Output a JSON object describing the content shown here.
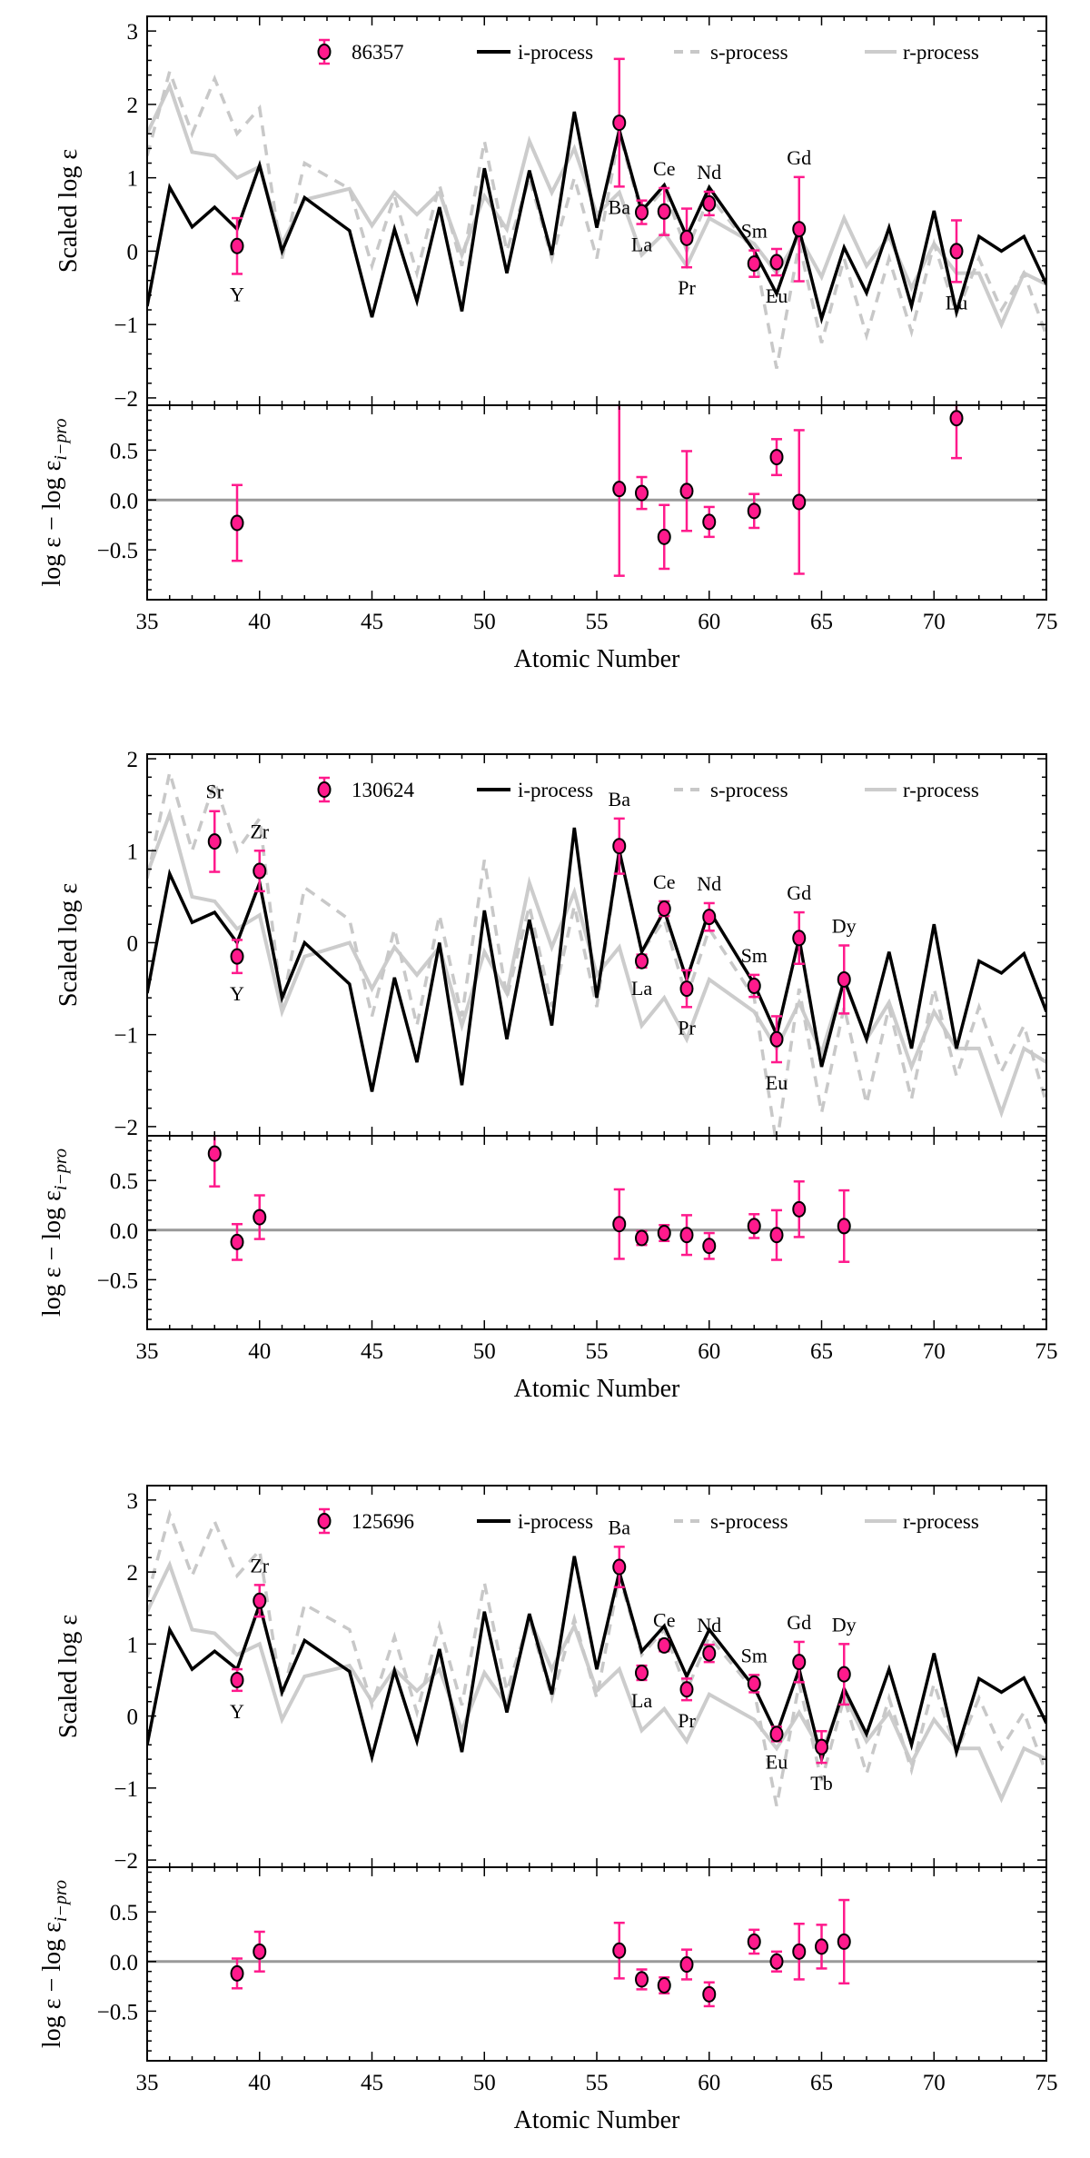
{
  "chart_data": [
    {
      "type": "line",
      "panel_star": "86357",
      "xlabel": "Atomic Number",
      "ylabel": "Scaled log ε",
      "residual_ylabel": "log ε − log ε",
      "residual_ylabel_sub": "i−pro",
      "xlim": [
        35,
        75
      ],
      "ylim": [
        -2.1,
        3.2
      ],
      "residual_ylim": [
        -1.0,
        0.95
      ],
      "x_ticks": [
        "35",
        "40",
        "45",
        "50",
        "55",
        "60",
        "65",
        "70",
        "75"
      ],
      "y_ticks": [
        "−2",
        "−1",
        "0",
        "1",
        "2",
        "3"
      ],
      "residual_y_ticks": [
        "−0.5",
        "0.0",
        "0.5"
      ],
      "legend": {
        "placement": "top",
        "entries": [
          "86357",
          "i-process",
          "s-process",
          "r-process"
        ]
      },
      "colors": {
        "observed": "#ff1a8c",
        "i_process": "#000000",
        "s_process": "#c8c8c8",
        "r_process": "#cccccc",
        "zero_line": "#999999"
      },
      "model_x": [
        35,
        36,
        37,
        38,
        39,
        40,
        41,
        42,
        44,
        45,
        46,
        47,
        48,
        49,
        50,
        51,
        52,
        53,
        54,
        55,
        56,
        57,
        58,
        59,
        60,
        62,
        63,
        64,
        65,
        66,
        67,
        68,
        69,
        70,
        71,
        72,
        73,
        74,
        75
      ],
      "series": [
        {
          "name": "i-process",
          "values": [
            -0.75,
            0.87,
            0.33,
            0.6,
            0.3,
            1.17,
            0.0,
            0.73,
            0.28,
            -0.9,
            0.3,
            -0.68,
            0.6,
            -0.82,
            1.13,
            -0.3,
            1.1,
            -0.05,
            1.9,
            0.32,
            1.65,
            0.55,
            0.9,
            0.2,
            0.87,
            0.0,
            -0.58,
            0.3,
            -0.92,
            0.05,
            -0.57,
            0.32,
            -0.75,
            0.55,
            -0.83,
            0.2,
            0.0,
            0.2,
            -0.45
          ]
        },
        {
          "name": "s-process",
          "values": [
            1.3,
            2.45,
            1.6,
            2.35,
            1.6,
            1.95,
            -0.1,
            1.2,
            0.85,
            -0.2,
            0.75,
            -0.3,
            0.9,
            -0.2,
            1.5,
            0.0,
            1.0,
            -0.1,
            1.0,
            -0.1,
            1.6,
            0.5,
            0.85,
            0.0,
            0.75,
            0.0,
            -1.6,
            0.1,
            -1.25,
            -0.1,
            -1.15,
            -0.1,
            -1.1,
            0.1,
            -0.85,
            -0.1,
            -0.8,
            -0.3,
            -1.15
          ]
        },
        {
          "name": "r-process",
          "values": [
            1.6,
            2.25,
            1.35,
            1.3,
            1.0,
            1.15,
            0.1,
            0.7,
            0.85,
            0.35,
            0.8,
            0.5,
            0.8,
            -0.05,
            0.75,
            0.3,
            1.5,
            0.8,
            1.4,
            0.5,
            0.8,
            -0.05,
            0.25,
            -0.2,
            0.45,
            0.1,
            -0.3,
            0.2,
            -0.35,
            0.45,
            -0.2,
            0.2,
            -0.5,
            0.1,
            -0.3,
            -0.3,
            -1.0,
            -0.3,
            -0.45
          ]
        }
      ],
      "observed": [
        {
          "label": "Y",
          "z": 39,
          "y": 0.07,
          "err": 0.38
        },
        {
          "label": "Ba",
          "z": 56,
          "y": 1.75,
          "err": 0.87
        },
        {
          "label": "La",
          "z": 57,
          "y": 0.53,
          "err": 0.16
        },
        {
          "label": "Ce",
          "z": 58,
          "y": 0.54,
          "err": 0.32
        },
        {
          "label": "Pr",
          "z": 59,
          "y": 0.18,
          "err": 0.4
        },
        {
          "label": "Nd",
          "z": 60,
          "y": 0.65,
          "err": 0.16
        },
        {
          "label": "Sm",
          "z": 62,
          "y": -0.17,
          "err": 0.18
        },
        {
          "label": "Eu",
          "z": 63,
          "y": -0.15,
          "err": 0.18
        },
        {
          "label": "Gd",
          "z": 64,
          "y": 0.3,
          "err": 0.71
        },
        {
          "label": "Lu",
          "z": 71,
          "y": 0.0,
          "err": 0.42
        }
      ],
      "residuals": [
        {
          "z": 39,
          "y": -0.23,
          "err": 0.38
        },
        {
          "z": 56,
          "y": 0.11,
          "err": 0.87
        },
        {
          "z": 57,
          "y": 0.07,
          "err": 0.16
        },
        {
          "z": 58,
          "y": -0.37,
          "err": 0.32
        },
        {
          "z": 59,
          "y": 0.09,
          "err": 0.4
        },
        {
          "z": 60,
          "y": -0.22,
          "err": 0.15
        },
        {
          "z": 62,
          "y": -0.11,
          "err": 0.17
        },
        {
          "z": 63,
          "y": 0.43,
          "err": 0.18
        },
        {
          "z": 64,
          "y": -0.02,
          "err": 0.72
        },
        {
          "z": 71,
          "y": 0.82,
          "err": 0.4
        }
      ]
    },
    {
      "type": "line",
      "panel_star": "130624",
      "xlabel": "Atomic Number",
      "ylabel": "Scaled log ε",
      "residual_ylabel": "log ε − log ε",
      "residual_ylabel_sub": "i−pro",
      "xlim": [
        35,
        75
      ],
      "ylim": [
        -2.1,
        2.05
      ],
      "residual_ylim": [
        -1.0,
        0.95
      ],
      "x_ticks": [
        "35",
        "40",
        "45",
        "50",
        "55",
        "60",
        "65",
        "70",
        "75"
      ],
      "y_ticks": [
        "−2",
        "−1",
        "0",
        "1",
        "2"
      ],
      "residual_y_ticks": [
        "−0.5",
        "0.0",
        "0.5"
      ],
      "legend": {
        "placement": "top",
        "entries": [
          "130624",
          "i-process",
          "s-process",
          "r-process"
        ]
      },
      "colors": {
        "observed": "#ff1a8c",
        "i_process": "#000000",
        "s_process": "#c8c8c8",
        "r_process": "#cccccc",
        "zero_line": "#999999"
      },
      "model_x": [
        35,
        36,
        37,
        38,
        39,
        40,
        41,
        42,
        44,
        45,
        46,
        47,
        48,
        49,
        50,
        51,
        52,
        53,
        54,
        55,
        56,
        57,
        58,
        59,
        60,
        62,
        63,
        64,
        65,
        66,
        67,
        68,
        69,
        70,
        71,
        72,
        73,
        74,
        75
      ],
      "series": [
        {
          "name": "i-process",
          "values": [
            -0.55,
            0.75,
            0.22,
            0.33,
            0.0,
            0.65,
            -0.6,
            0.0,
            -0.45,
            -1.62,
            -0.38,
            -1.3,
            0.0,
            -1.55,
            0.35,
            -1.05,
            0.25,
            -0.9,
            1.25,
            -0.6,
            1.0,
            -0.1,
            0.35,
            -0.4,
            0.35,
            -0.45,
            -1.0,
            0.05,
            -1.35,
            -0.4,
            -1.05,
            -0.1,
            -1.15,
            0.2,
            -1.15,
            -0.2,
            -0.33,
            -0.12,
            -0.75
          ]
        },
        {
          "name": "s-process",
          "values": [
            0.7,
            1.85,
            1.0,
            1.75,
            1.0,
            1.35,
            -0.7,
            0.6,
            0.25,
            -0.8,
            0.15,
            -0.9,
            0.3,
            -0.8,
            0.9,
            -0.6,
            0.4,
            -0.7,
            0.4,
            -0.7,
            1.0,
            -0.1,
            0.25,
            -0.6,
            0.15,
            -0.6,
            -2.2,
            -0.5,
            -1.85,
            -0.7,
            -1.75,
            -0.7,
            -1.7,
            -0.5,
            -1.45,
            -0.7,
            -1.4,
            -0.9,
            -1.75
          ]
        },
        {
          "name": "r-process",
          "values": [
            0.75,
            1.4,
            0.5,
            0.45,
            0.15,
            0.3,
            -0.75,
            -0.15,
            0.0,
            -0.5,
            -0.05,
            -0.35,
            -0.05,
            -0.9,
            -0.1,
            -0.55,
            0.65,
            -0.05,
            0.55,
            -0.35,
            -0.05,
            -0.9,
            -0.6,
            -1.05,
            -0.4,
            -0.75,
            -1.15,
            -0.65,
            -1.2,
            -0.4,
            -1.05,
            -0.65,
            -1.35,
            -0.75,
            -1.15,
            -1.15,
            -1.85,
            -1.15,
            -1.3
          ]
        }
      ],
      "observed": [
        {
          "label": "Sr",
          "z": 38,
          "y": 1.1,
          "err": 0.33
        },
        {
          "label": "Y",
          "z": 39,
          "y": -0.15,
          "err": 0.18
        },
        {
          "label": "Zr",
          "z": 40,
          "y": 0.78,
          "err": 0.22
        },
        {
          "label": "Ba",
          "z": 56,
          "y": 1.05,
          "err": 0.3
        },
        {
          "label": "La",
          "z": 57,
          "y": -0.2,
          "err": 0.07
        },
        {
          "label": "Ce",
          "z": 58,
          "y": 0.37,
          "err": 0.08
        },
        {
          "label": "Pr",
          "z": 59,
          "y": -0.5,
          "err": 0.2
        },
        {
          "label": "Nd",
          "z": 60,
          "y": 0.28,
          "err": 0.15
        },
        {
          "label": "Sm",
          "z": 62,
          "y": -0.47,
          "err": 0.12
        },
        {
          "label": "Eu",
          "z": 63,
          "y": -1.05,
          "err": 0.25
        },
        {
          "label": "Gd",
          "z": 64,
          "y": 0.05,
          "err": 0.28
        },
        {
          "label": "Dy",
          "z": 66,
          "y": -0.4,
          "err": 0.37
        }
      ],
      "residuals": [
        {
          "z": 38,
          "y": 0.77,
          "err": 0.33
        },
        {
          "z": 39,
          "y": -0.12,
          "err": 0.18
        },
        {
          "z": 40,
          "y": 0.13,
          "err": 0.22
        },
        {
          "z": 56,
          "y": 0.06,
          "err": 0.35
        },
        {
          "z": 57,
          "y": -0.08,
          "err": 0.07
        },
        {
          "z": 58,
          "y": -0.03,
          "err": 0.08
        },
        {
          "z": 59,
          "y": -0.05,
          "err": 0.2
        },
        {
          "z": 60,
          "y": -0.16,
          "err": 0.13
        },
        {
          "z": 62,
          "y": 0.04,
          "err": 0.12
        },
        {
          "z": 63,
          "y": -0.05,
          "err": 0.25
        },
        {
          "z": 64,
          "y": 0.21,
          "err": 0.28
        },
        {
          "z": 66,
          "y": 0.04,
          "err": 0.36
        }
      ]
    },
    {
      "type": "line",
      "panel_star": "125696",
      "xlabel": "Atomic Number",
      "ylabel": "Scaled log ε",
      "residual_ylabel": "log ε − log ε",
      "residual_ylabel_sub": "i−pro",
      "xlim": [
        35,
        75
      ],
      "ylim": [
        -2.1,
        3.2
      ],
      "residual_ylim": [
        -1.0,
        0.95
      ],
      "x_ticks": [
        "35",
        "40",
        "45",
        "50",
        "55",
        "60",
        "65",
        "70",
        "75"
      ],
      "y_ticks": [
        "−2",
        "−1",
        "0",
        "1",
        "2",
        "3"
      ],
      "residual_y_ticks": [
        "−0.5",
        "0.0",
        "0.5"
      ],
      "legend": {
        "placement": "top",
        "entries": [
          "125696",
          "i-process",
          "s-process",
          "r-process"
        ]
      },
      "colors": {
        "observed": "#ff1a8c",
        "i_process": "#000000",
        "s_process": "#c8c8c8",
        "r_process": "#cccccc",
        "zero_line": "#999999"
      },
      "model_x": [
        35,
        36,
        37,
        38,
        39,
        40,
        41,
        42,
        44,
        45,
        46,
        47,
        48,
        49,
        50,
        51,
        52,
        53,
        54,
        55,
        56,
        57,
        58,
        59,
        60,
        62,
        63,
        64,
        65,
        66,
        67,
        68,
        69,
        70,
        71,
        72,
        73,
        74,
        75
      ],
      "series": [
        {
          "name": "i-process",
          "values": [
            -0.4,
            1.2,
            0.65,
            0.9,
            0.65,
            1.55,
            0.33,
            1.05,
            0.62,
            -0.57,
            0.63,
            -0.35,
            0.93,
            -0.5,
            1.45,
            0.05,
            1.42,
            0.3,
            2.22,
            0.65,
            2.0,
            0.9,
            1.25,
            0.55,
            1.2,
            0.4,
            -0.25,
            0.65,
            -0.6,
            0.38,
            -0.25,
            0.65,
            -0.4,
            0.87,
            -0.5,
            0.52,
            0.33,
            0.53,
            -0.1
          ]
        },
        {
          "name": "s-process",
          "values": [
            1.65,
            2.8,
            1.95,
            2.7,
            1.95,
            2.3,
            0.25,
            1.55,
            1.2,
            0.15,
            1.1,
            0.05,
            1.25,
            0.15,
            1.85,
            0.35,
            1.35,
            0.25,
            1.35,
            0.25,
            1.95,
            0.85,
            1.2,
            0.35,
            1.1,
            0.35,
            -1.25,
            0.45,
            -0.9,
            0.25,
            -0.8,
            0.25,
            -0.75,
            0.45,
            -0.5,
            0.25,
            -0.45,
            0.05,
            -0.8
          ]
        },
        {
          "name": "r-process",
          "values": [
            1.45,
            2.1,
            1.2,
            1.15,
            0.85,
            1.0,
            -0.05,
            0.55,
            0.7,
            0.2,
            0.65,
            0.35,
            0.65,
            -0.2,
            0.6,
            0.15,
            1.35,
            0.65,
            1.25,
            0.35,
            0.65,
            -0.2,
            0.1,
            -0.35,
            0.3,
            -0.05,
            -0.45,
            0.05,
            -0.5,
            0.3,
            -0.35,
            0.05,
            -0.65,
            -0.05,
            -0.45,
            -0.45,
            -1.15,
            -0.45,
            -0.6
          ]
        }
      ],
      "observed": [
        {
          "label": "Y",
          "z": 39,
          "y": 0.5,
          "err": 0.15
        },
        {
          "label": "Zr",
          "z": 40,
          "y": 1.6,
          "err": 0.22
        },
        {
          "label": "Ba",
          "z": 56,
          "y": 2.07,
          "err": 0.28
        },
        {
          "label": "La",
          "z": 57,
          "y": 0.6,
          "err": 0.1
        },
        {
          "label": "Ce",
          "z": 58,
          "y": 0.98,
          "err": 0.08
        },
        {
          "label": "Pr",
          "z": 59,
          "y": 0.37,
          "err": 0.15
        },
        {
          "label": "Nd",
          "z": 60,
          "y": 0.87,
          "err": 0.12
        },
        {
          "label": "Sm",
          "z": 62,
          "y": 0.45,
          "err": 0.12
        },
        {
          "label": "Eu",
          "z": 63,
          "y": -0.25,
          "err": 0.1
        },
        {
          "label": "Gd",
          "z": 64,
          "y": 0.75,
          "err": 0.28
        },
        {
          "label": "Tb",
          "z": 65,
          "y": -0.43,
          "err": 0.22
        },
        {
          "label": "Dy",
          "z": 66,
          "y": 0.58,
          "err": 0.42
        }
      ],
      "residuals": [
        {
          "z": 39,
          "y": -0.12,
          "err": 0.15
        },
        {
          "z": 40,
          "y": 0.1,
          "err": 0.2
        },
        {
          "z": 56,
          "y": 0.11,
          "err": 0.28
        },
        {
          "z": 57,
          "y": -0.18,
          "err": 0.1
        },
        {
          "z": 58,
          "y": -0.24,
          "err": 0.08
        },
        {
          "z": 59,
          "y": -0.03,
          "err": 0.15
        },
        {
          "z": 60,
          "y": -0.33,
          "err": 0.12
        },
        {
          "z": 62,
          "y": 0.2,
          "err": 0.12
        },
        {
          "z": 63,
          "y": 0.0,
          "err": 0.1
        },
        {
          "z": 64,
          "y": 0.1,
          "err": 0.28
        },
        {
          "z": 65,
          "y": 0.15,
          "err": 0.22
        },
        {
          "z": 66,
          "y": 0.2,
          "err": 0.42
        }
      ]
    }
  ]
}
